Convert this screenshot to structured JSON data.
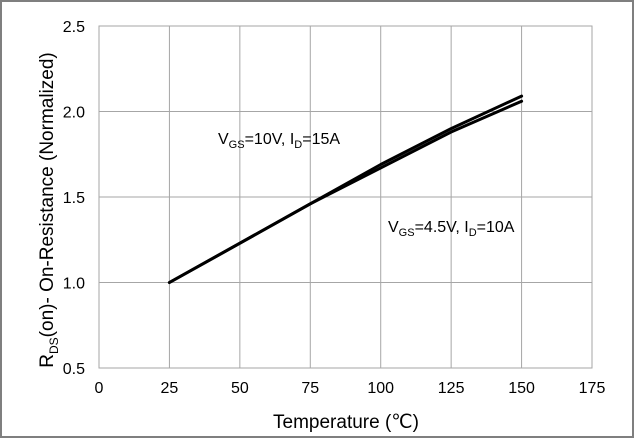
{
  "chart_data": {
    "type": "line",
    "xlabel": "Temperature (℃)",
    "ylabel": "RDS(on)- On-Resistance (Normalized)",
    "xlim": [
      0,
      175
    ],
    "ylim": [
      0.5,
      2.5
    ],
    "x_ticks": [
      "0",
      "25",
      "50",
      "75",
      "100",
      "125",
      "150",
      "175"
    ],
    "y_ticks": [
      "2.5",
      "2.0",
      "1.5",
      "1.0",
      "0.5"
    ],
    "grid": true,
    "series": [
      {
        "name": "VGS=10V, ID=15A",
        "x": [
          25,
          50,
          75,
          100,
          125,
          150
        ],
        "y": [
          1.0,
          1.23,
          1.46,
          1.69,
          1.9,
          2.09
        ]
      },
      {
        "name": "VGS=4.5V, ID=10A",
        "x": [
          25,
          50,
          75,
          100,
          125,
          150
        ],
        "y": [
          1.0,
          1.23,
          1.46,
          1.67,
          1.88,
          2.06
        ]
      }
    ],
    "annotations": [
      {
        "base1": "V",
        "sub1": "GS",
        "mid": "=10V, I",
        "sub2": "D",
        "tail": "=15A"
      },
      {
        "base1": "V",
        "sub1": "GS",
        "mid": "=4.5V, I",
        "sub2": "D",
        "tail": "=10A"
      }
    ],
    "ylabel_parts": {
      "base": "R",
      "sub": "DS",
      "rest": "(on)- On-Resistance (Normalized)"
    },
    "colors": {
      "line": "#000000",
      "grid": "#a6a6a6",
      "border": "#7f7f7f"
    }
  }
}
